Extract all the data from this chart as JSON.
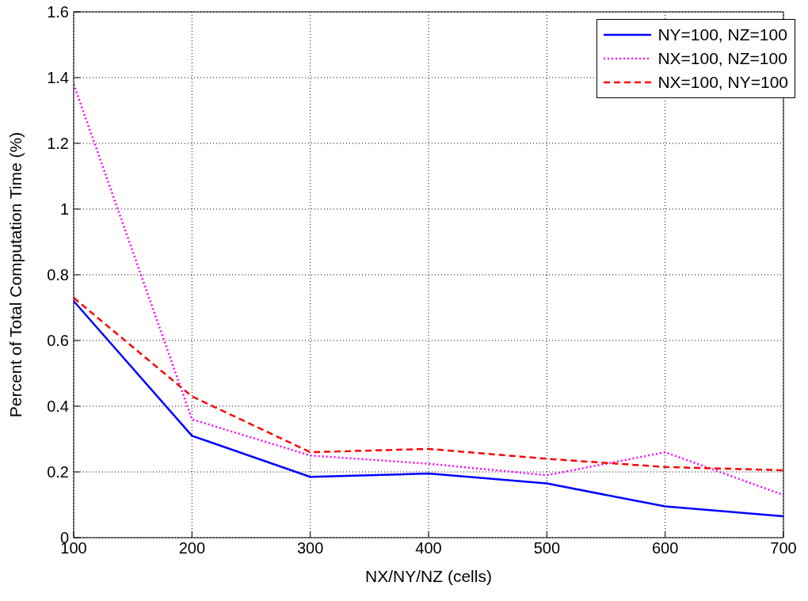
{
  "chart_data": {
    "type": "line",
    "xlabel": "NX/NY/NZ (cells)",
    "ylabel": "Percent of Total Computation Time (%)",
    "x": [
      100,
      200,
      300,
      400,
      500,
      600,
      700
    ],
    "series": [
      {
        "name": "NY=100, NZ=100",
        "color": "#0000ff",
        "line_style": "solid",
        "values": [
          0.72,
          0.31,
          0.185,
          0.195,
          0.165,
          0.095,
          0.065
        ]
      },
      {
        "name": "NX=100, NZ=100",
        "color": "#ff00ff",
        "line_style": "dotted",
        "values": [
          1.38,
          0.36,
          0.25,
          0.225,
          0.19,
          0.26,
          0.13
        ]
      },
      {
        "name": "NX=100, NY=100",
        "color": "#ff0000",
        "line_style": "dashed",
        "values": [
          0.73,
          0.43,
          0.26,
          0.27,
          0.24,
          0.215,
          0.205
        ]
      }
    ],
    "xlim": [
      100,
      700
    ],
    "xticks": [
      100,
      200,
      300,
      400,
      500,
      600,
      700
    ],
    "ylim": [
      0,
      1.6
    ],
    "yticks": [
      0,
      0.2,
      0.4,
      0.6,
      0.8,
      1,
      1.2,
      1.4,
      1.6
    ],
    "grid": true,
    "legend": "top right",
    "marker": "none"
  }
}
